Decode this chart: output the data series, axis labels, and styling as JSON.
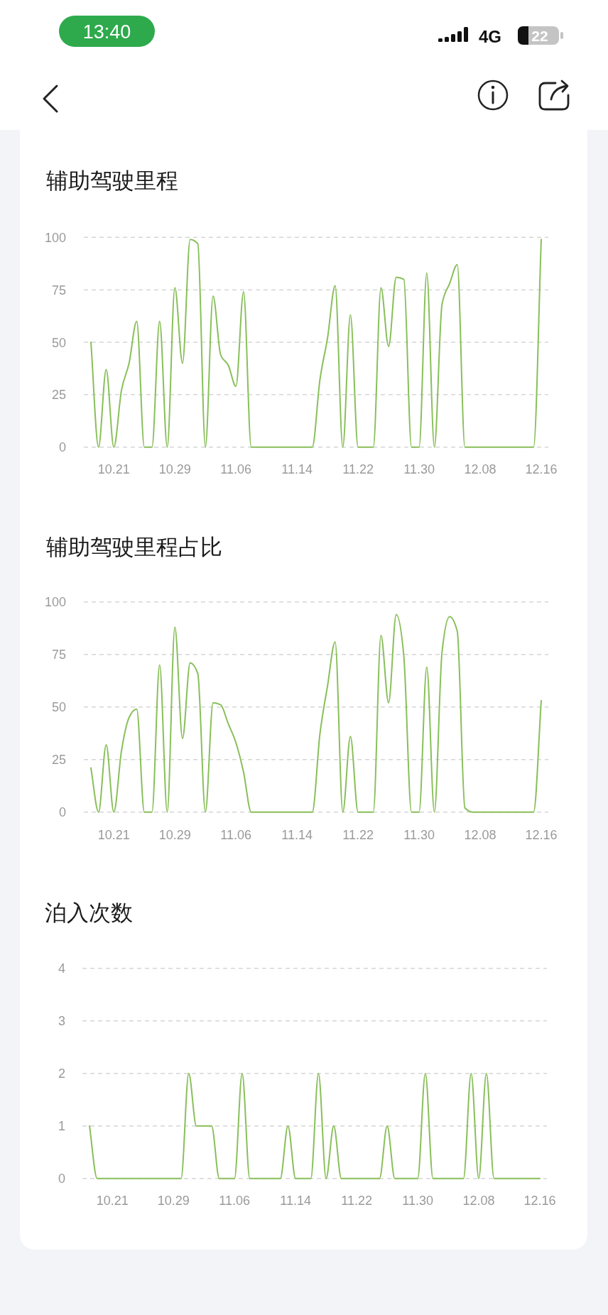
{
  "chart_data": [
    {
      "type": "other",
      "annotations": [
        "13:40",
        "4G",
        "22"
      ]
    },
    {
      "type": "line",
      "title": "辅助驾驶里程",
      "categories": [
        null,
        null,
        null,
        "10.21",
        null,
        null,
        null,
        null,
        null,
        null,
        null,
        "10.29",
        null,
        null,
        null,
        null,
        null,
        null,
        null,
        "11.06",
        null,
        null,
        null,
        null,
        null,
        null,
        null,
        "11.14",
        null,
        null,
        null,
        null,
        null,
        null,
        null,
        "11.22",
        null,
        null,
        null,
        null,
        null,
        null,
        null,
        "11.30",
        null,
        null,
        null,
        null,
        null,
        null,
        null,
        "12.08",
        null,
        null,
        null,
        null,
        null,
        null,
        null,
        "12.16"
      ],
      "values": [
        50,
        0,
        37,
        0,
        27,
        40,
        60,
        0,
        0,
        60,
        0,
        76,
        40,
        99,
        97,
        0,
        72,
        44,
        39,
        29,
        74,
        0,
        0,
        0,
        0,
        0,
        0,
        0,
        0,
        0,
        32,
        52,
        77,
        0,
        63,
        0,
        0,
        0,
        76,
        48,
        81,
        80,
        0,
        0,
        83,
        0,
        68,
        78,
        87,
        0,
        0,
        0,
        0,
        0,
        0,
        0,
        0,
        0,
        0,
        99
      ],
      "color": "#89bf5a",
      "ylim": [
        0,
        100
      ],
      "yticks": [
        0,
        25,
        50,
        75,
        100
      ],
      "grid": "y"
    },
    {
      "type": "line",
      "title": "辅助驾驶里程占比",
      "categories": [
        null,
        null,
        null,
        "10.21",
        null,
        null,
        null,
        null,
        null,
        null,
        null,
        "10.29",
        null,
        null,
        null,
        null,
        null,
        null,
        null,
        "11.06",
        null,
        null,
        null,
        null,
        null,
        null,
        null,
        "11.14",
        null,
        null,
        null,
        null,
        null,
        null,
        null,
        "11.22",
        null,
        null,
        null,
        null,
        null,
        null,
        null,
        "11.30",
        null,
        null,
        null,
        null,
        null,
        null,
        null,
        "12.08",
        null,
        null,
        null,
        null,
        null,
        null,
        null,
        "12.16"
      ],
      "values": [
        21,
        0,
        32,
        0,
        29,
        45,
        49,
        0,
        0,
        70,
        0,
        88,
        35,
        71,
        66,
        0,
        52,
        51,
        42,
        33,
        19,
        0,
        0,
        0,
        0,
        0,
        0,
        0,
        0,
        0,
        37,
        60,
        81,
        0,
        36,
        0,
        0,
        0,
        84,
        52,
        94,
        74,
        0,
        0,
        69,
        0,
        76,
        93,
        86,
        2,
        0,
        0,
        0,
        0,
        0,
        0,
        0,
        0,
        0,
        53
      ],
      "color": "#89bf5a",
      "ylim": [
        0,
        100
      ],
      "yticks": [
        0,
        25,
        50,
        75,
        100
      ],
      "grid": "y"
    },
    {
      "type": "line",
      "title": "泊入次数",
      "categories": [
        null,
        null,
        null,
        "10.21",
        null,
        null,
        null,
        null,
        null,
        null,
        null,
        "10.29",
        null,
        null,
        null,
        null,
        null,
        null,
        null,
        "11.06",
        null,
        null,
        null,
        null,
        null,
        null,
        null,
        "11.14",
        null,
        null,
        null,
        null,
        null,
        null,
        null,
        "11.22",
        null,
        null,
        null,
        null,
        null,
        null,
        null,
        "11.30",
        null,
        null,
        null,
        null,
        null,
        null,
        null,
        "12.08",
        null,
        null,
        null,
        null,
        null,
        null,
        null,
        "12.16"
      ],
      "values": [
        1,
        0,
        0,
        0,
        0,
        0,
        0,
        0,
        0,
        0,
        0,
        0,
        0,
        2,
        1,
        1,
        1,
        0,
        0,
        0,
        2,
        0,
        0,
        0,
        0,
        0,
        1,
        0,
        0,
        0,
        2,
        0,
        1,
        0,
        0,
        0,
        0,
        0,
        0,
        1,
        0,
        0,
        0,
        0,
        2,
        0,
        0,
        0,
        0,
        0,
        2,
        0,
        2,
        0,
        0,
        0,
        0,
        0,
        0,
        0
      ],
      "color": "#89bf5a",
      "ylim": [
        0,
        4
      ],
      "yticks": [
        0,
        1,
        2,
        3,
        4
      ],
      "grid": "y"
    }
  ]
}
